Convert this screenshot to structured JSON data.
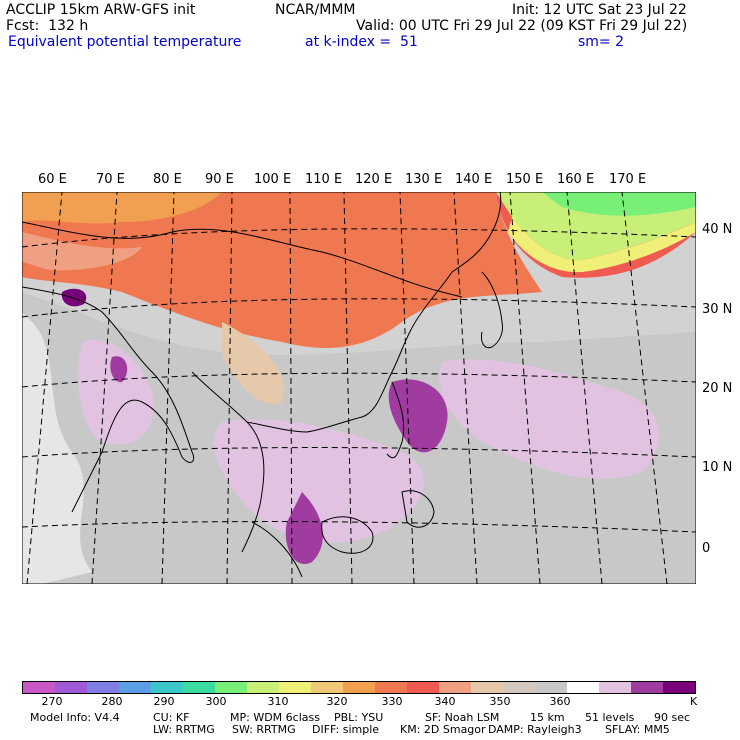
{
  "header": {
    "line1_left": "ACCLIP 15km ARW-GFS init",
    "line1_mid": "NCAR/MMM",
    "line1_right": "Init: 12 UTC Sat 23 Jul 22",
    "line2_left": "Fcst:  132 h",
    "line2_right": "Valid: 00 UTC Fri 29 Jul 22 (09 KST Fri 29 Jul 22)",
    "line3_left": "Equivalent potential temperature",
    "line3_mid": "at k-index =  51",
    "line3_right": "sm= 2"
  },
  "map": {
    "lon_labels": [
      "60 E",
      "70 E",
      "80 E",
      "90 E",
      "100 E",
      "110 E",
      "120 E",
      "130 E",
      "140 E",
      "150 E",
      "160 E",
      "170 E"
    ],
    "lat_labels": [
      "40 N",
      "30 N",
      "20 N",
      "10 N",
      "0"
    ]
  },
  "colorbar": {
    "colors": [
      "#c858c8",
      "#a05ad6",
      "#7f7fe6",
      "#5aa0e6",
      "#3cc8c8",
      "#3cdca0",
      "#78f078",
      "#c8f078",
      "#f0f078",
      "#f0c878",
      "#f0a050",
      "#f07850",
      "#f05a50",
      "#f0a082",
      "#e6c8aa",
      "#d2c8be",
      "#c8c8c8",
      "#ffffff",
      "#e1c3e1",
      "#a03ca0",
      "#780078"
    ],
    "labels": [
      "270",
      "280",
      "290",
      "300",
      "310",
      "320",
      "330",
      "340",
      "350",
      "360"
    ],
    "unit": "K"
  },
  "footer": {
    "model_info": "Model Info: V4.4",
    "cu": "CU: KF",
    "mp": "MP: WDM 6class",
    "pbl": "PBL: YSU",
    "sf": "SF: Noah LSM",
    "res": "15 km",
    "levels": "51 levels",
    "dt": "90 sec",
    "lw": "LW: RRTMG",
    "sw": "SW: RRTMG",
    "diff": "DIFF: simple",
    "km": "KM: 2D Smagor",
    "damp": "DAMP: Rayleigh3",
    "sflay": "SFLAY: MM5"
  }
}
